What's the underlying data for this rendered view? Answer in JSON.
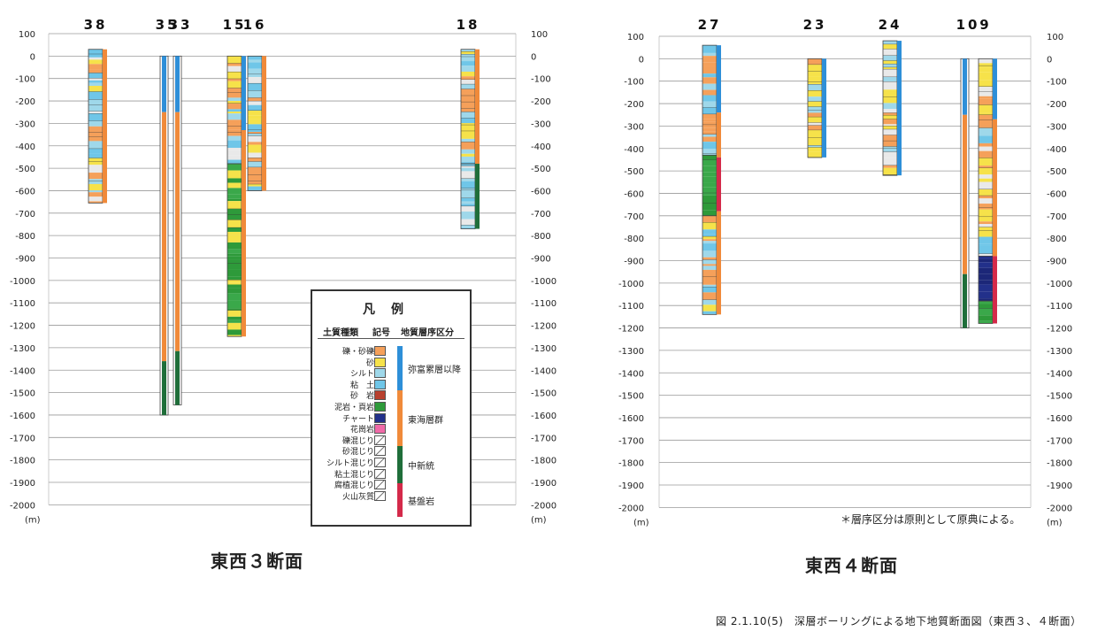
{
  "panels": [
    {
      "id": "p3",
      "title": "東西３断面",
      "unit_left": "(m)",
      "unit_right": "(m)",
      "ticks": [
        100,
        0,
        -100,
        -200,
        -300,
        -400,
        -500,
        -600,
        -700,
        -800,
        -900,
        -1000,
        -1100,
        -1200,
        -1300,
        -1400,
        -1500,
        -1600,
        -1700,
        -1800,
        -1900,
        -2000
      ],
      "wells": [
        {
          "label": "38",
          "top": 30,
          "bottom": -655,
          "kind": "mixed",
          "x": 100
        },
        {
          "label": "35",
          "top": 0,
          "bottom": -1600,
          "kind": "deep",
          "x": 181
        },
        {
          "label": "33",
          "top": 0,
          "bottom": -1555,
          "kind": "deep",
          "x": 196
        },
        {
          "label": "15",
          "top": 0,
          "bottom": -1250,
          "kind": "green",
          "x": 257
        },
        {
          "label": "16",
          "top": 0,
          "bottom": -600,
          "kind": "mixed",
          "x": 280
        },
        {
          "label": "18",
          "top": 30,
          "bottom": -770,
          "kind": "mixed2",
          "x": 521
        }
      ]
    },
    {
      "id": "p4",
      "title": "東西４断面",
      "unit_left": "(m)",
      "unit_right": "(m)",
      "ticks": [
        100,
        0,
        -100,
        -200,
        -300,
        -400,
        -500,
        -600,
        -700,
        -800,
        -900,
        -1000,
        -1100,
        -1200,
        -1300,
        -1400,
        -1500,
        -1600,
        -1700,
        -1800,
        -1900,
        -2000
      ],
      "wells": [
        {
          "label": "27",
          "top": 60,
          "bottom": -1140,
          "kind": "p27",
          "x": 794
        },
        {
          "label": "23",
          "top": 0,
          "bottom": -440,
          "kind": "bands",
          "x": 913
        },
        {
          "label": "24",
          "top": 80,
          "bottom": -520,
          "kind": "bands",
          "x": 998
        },
        {
          "label": "10",
          "top": 0,
          "bottom": -1200,
          "kind": "deep",
          "x": 1086
        },
        {
          "label": "9",
          "top": 0,
          "bottom": -1180,
          "kind": "p9",
          "x": 1106
        }
      ]
    }
  ],
  "legend": {
    "title": "凡例",
    "col_headers": [
      "土質種類",
      "記号",
      "地質層序区分"
    ],
    "soil_types": [
      "礫・砂礫",
      "砂",
      "シルト",
      "粘　土",
      "砂　岩",
      "泥岩・頁岩",
      "チャート",
      "花崗岩",
      "礫混じり",
      "砂混じり",
      "シルト混じり",
      "粘土混じり",
      "腐植混じり",
      "火山灰質"
    ],
    "strata": [
      "弥富累層以降",
      "東海層群",
      "中新統",
      "基盤岩"
    ],
    "colors": {
      "gravel": "#f5a05a",
      "sand": "#f6e24a",
      "silt": "#9fd8ea",
      "clay": "#6fc6e8",
      "sandstone": "#b8402e",
      "mudstone": "#2e9a3a",
      "chert": "#22308a",
      "granite": "#f06aa8",
      "strat_yatomi": "#2e8fd8",
      "strat_tokai": "#f08a3a",
      "strat_miocene": "#1f6e3a",
      "strat_base": "#d42a4a"
    }
  },
  "note": "＊層序区分は原則として原典による。",
  "caption": "図 2.1.10(5)　深層ボーリングによる地下地質断面図（東西３、４断面）"
}
